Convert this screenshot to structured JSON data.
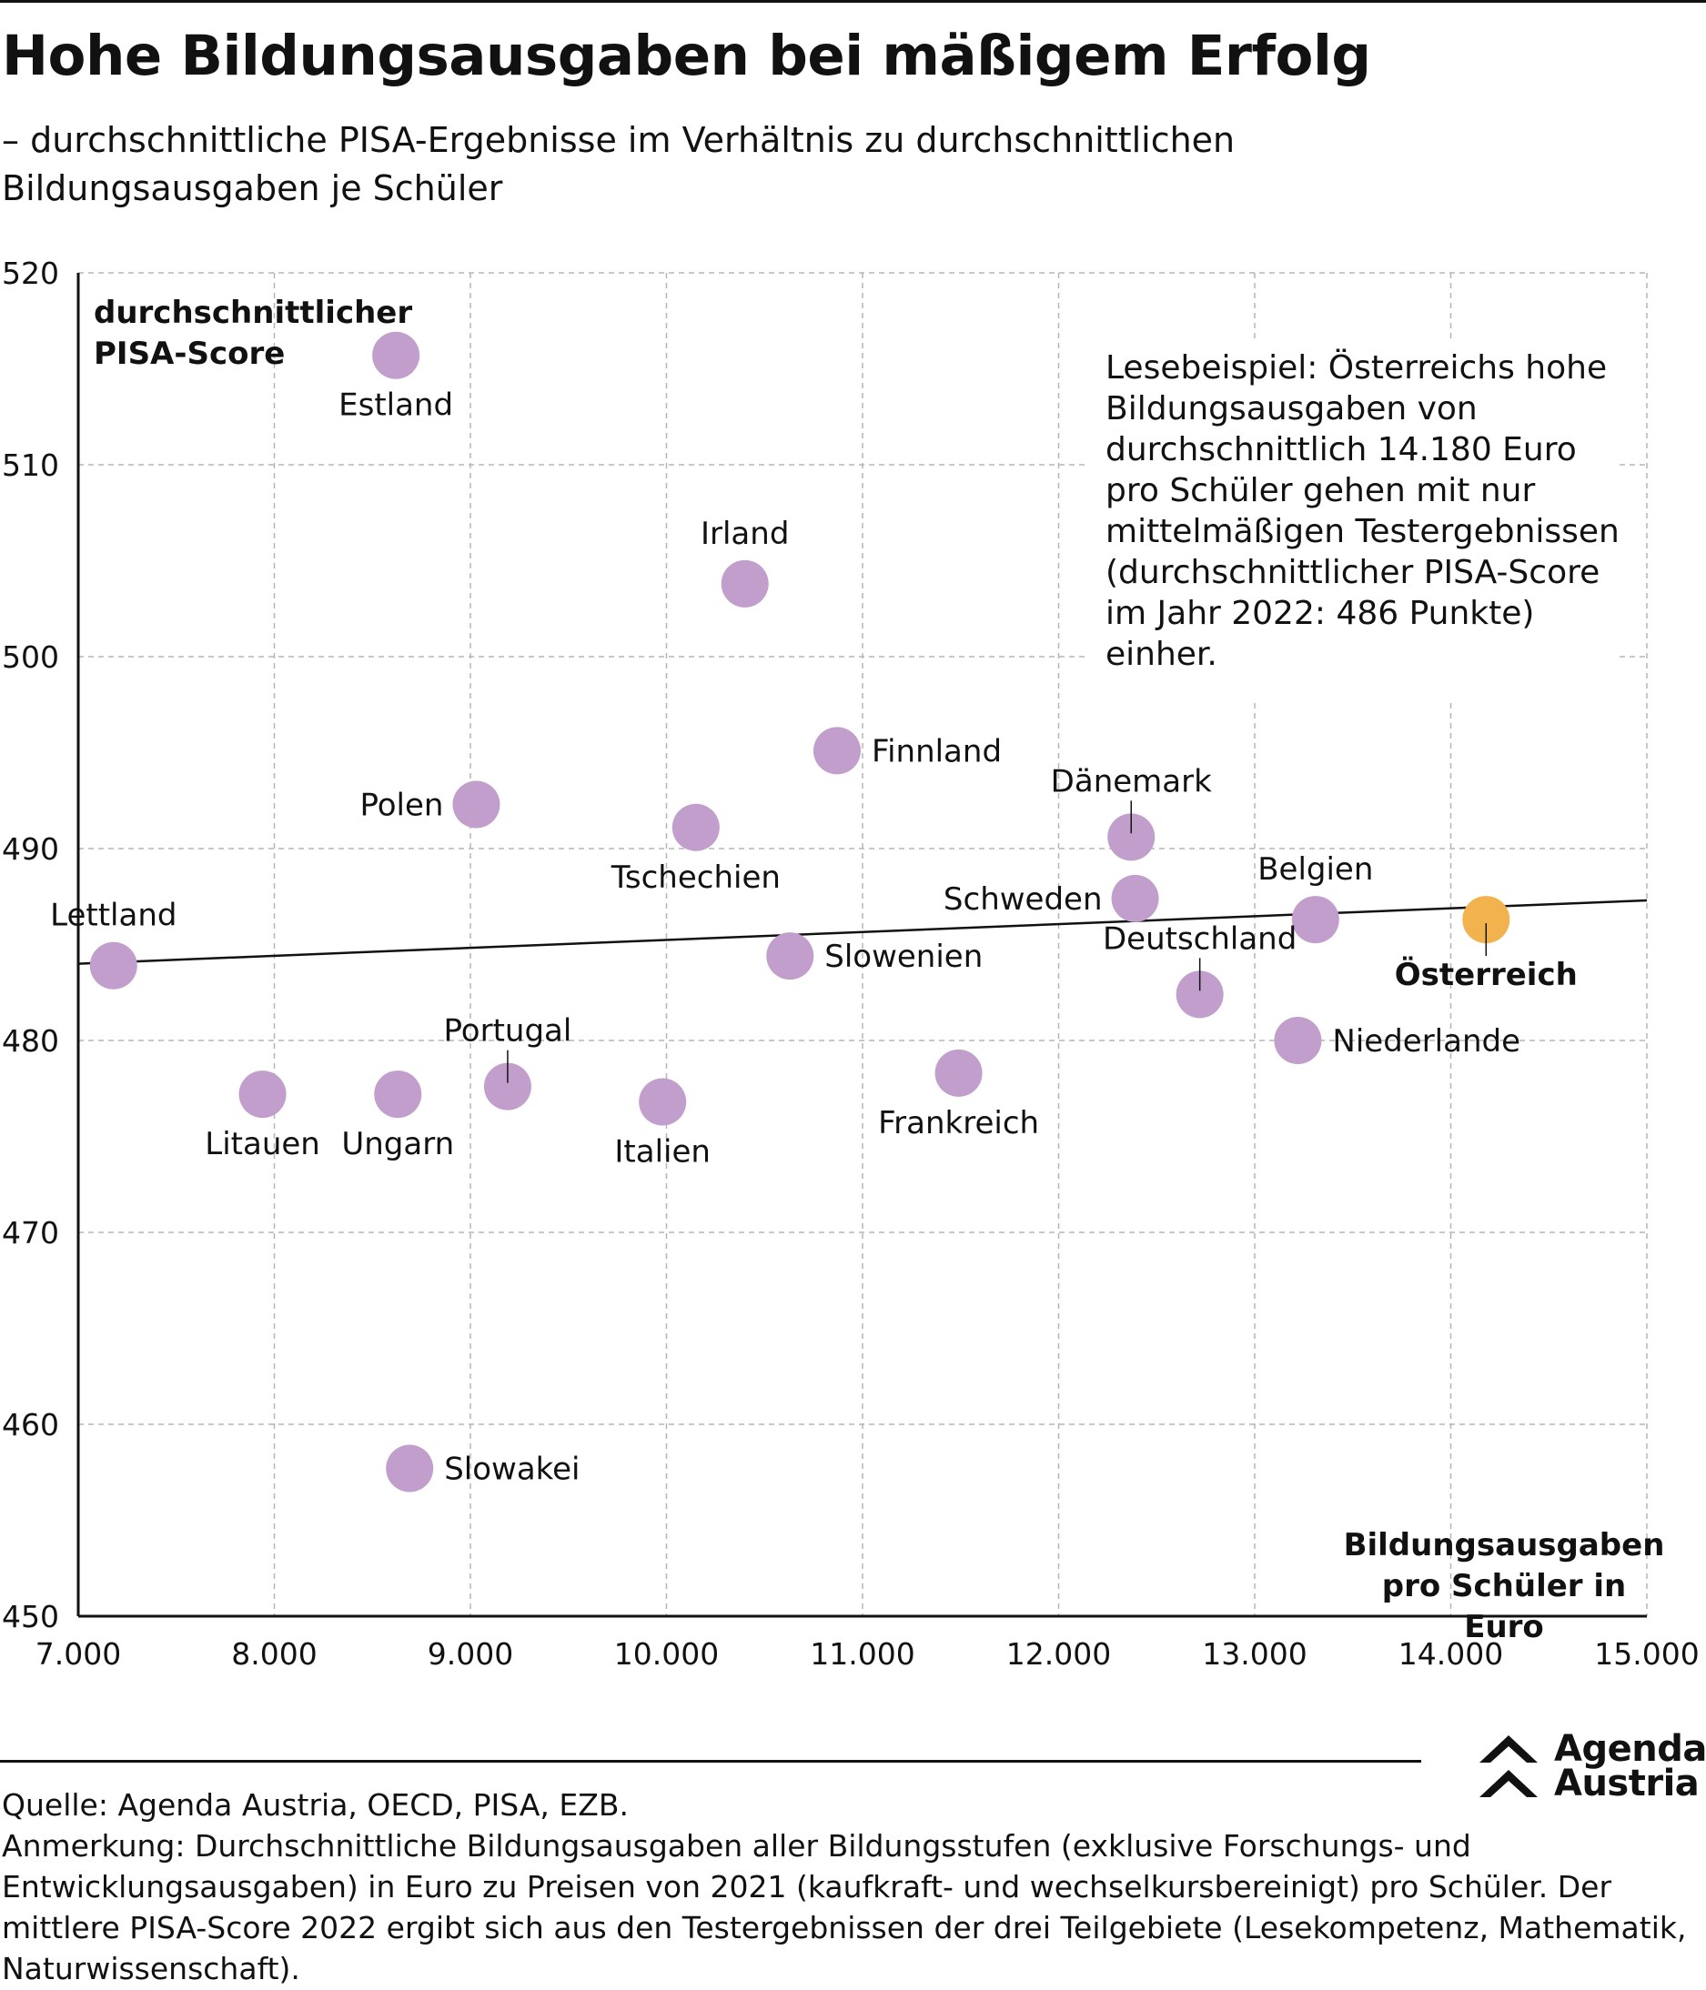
{
  "header": {
    "title": "Hohe Bildungsausgaben bei mäßigem Erfolg",
    "subtitle": "– durchschnittliche PISA-Ergebnisse im Verhältnis zu durchschnittlichen Bildungsausgaben je Schüler"
  },
  "chart_data": {
    "type": "scatter",
    "ylabel": "durchschnittlicher PISA-Score",
    "xlabel": "Bildungsausgaben pro Schüler in Euro",
    "xlim": [
      7000,
      15000
    ],
    "ylim": [
      450,
      520
    ],
    "xticks": [
      7000,
      8000,
      9000,
      10000,
      11000,
      12000,
      13000,
      14000,
      15000
    ],
    "xtick_labels": [
      "7.000",
      "8.000",
      "9.000",
      "10.000",
      "11.000",
      "12.000",
      "13.000",
      "14.000",
      "15.000"
    ],
    "yticks": [
      450,
      460,
      470,
      480,
      490,
      500,
      510,
      520
    ],
    "ytick_labels": [
      "450",
      "460",
      "470",
      "480",
      "490",
      "500",
      "510",
      "520"
    ],
    "grid": true,
    "trendline": {
      "x": [
        7000,
        15000
      ],
      "y": [
        484.0,
        487.3
      ]
    },
    "colors": {
      "default": "#c19ecc",
      "highlight": "#f2b24d"
    },
    "points": [
      {
        "label": "Estland",
        "x": 8620,
        "y": 515.7,
        "label_pos": "below"
      },
      {
        "label": "Irland",
        "x": 10400,
        "y": 503.8,
        "label_pos": "above"
      },
      {
        "label": "Finnland",
        "x": 10870,
        "y": 495.1,
        "label_pos": "right"
      },
      {
        "label": "Polen",
        "x": 9030,
        "y": 492.3,
        "label_pos": "left"
      },
      {
        "label": "Tschechien",
        "x": 10150,
        "y": 491.1,
        "label_pos": "below"
      },
      {
        "label": "Dänemark",
        "x": 12370,
        "y": 490.6,
        "label_pos": "above-leader"
      },
      {
        "label": "Schweden",
        "x": 12390,
        "y": 487.4,
        "label_pos": "left"
      },
      {
        "label": "Belgien",
        "x": 13310,
        "y": 486.3,
        "label_pos": "above"
      },
      {
        "label": "Österreich",
        "x": 14180,
        "y": 486.3,
        "label_pos": "below-leader",
        "highlight": true
      },
      {
        "label": "Lettland",
        "x": 7180,
        "y": 483.9,
        "label_pos": "above"
      },
      {
        "label": "Slowenien",
        "x": 10630,
        "y": 484.4,
        "label_pos": "right"
      },
      {
        "label": "Deutschland",
        "x": 12720,
        "y": 482.4,
        "label_pos": "above-leader"
      },
      {
        "label": "Niederlande",
        "x": 13220,
        "y": 480.0,
        "label_pos": "right"
      },
      {
        "label": "Frankreich",
        "x": 11490,
        "y": 478.3,
        "label_pos": "below"
      },
      {
        "label": "Portugal",
        "x": 9190,
        "y": 477.6,
        "label_pos": "above-leader"
      },
      {
        "label": "Litauen",
        "x": 7940,
        "y": 477.2,
        "label_pos": "below"
      },
      {
        "label": "Ungarn",
        "x": 8630,
        "y": 477.2,
        "label_pos": "below"
      },
      {
        "label": "Italien",
        "x": 9980,
        "y": 476.8,
        "label_pos": "below"
      },
      {
        "label": "Slowakei",
        "x": 8690,
        "y": 457.7,
        "label_pos": "right"
      }
    ],
    "annotation": "Lesebeispiel: Österreichs hohe Bildungsausgaben von durchschnittlich 14.180 Euro pro Schüler gehen mit nur mittelmäßigen Testergebnissen (durchschnittlicher PISA-Score im Jahr 2022: 486 Punkte) einher."
  },
  "logo": {
    "line1": "Agenda",
    "line2": "Austria"
  },
  "footer": {
    "source": "Quelle: Agenda Austria, OECD, PISA, EZB.",
    "note": "Anmerkung: Durchschnittliche Bildungsausgaben aller Bildungsstufen (exklusive Forschungs- und Entwicklungsausgaben) in Euro zu Preisen von 2021 (kaufkraft- und wechselkursbereinigt) pro Schüler. Der mittlere PISA-Score 2022 ergibt sich aus den Testergebnissen der drei Teilgebiete (Lesekompetenz, Mathematik, Naturwissenschaft)."
  }
}
